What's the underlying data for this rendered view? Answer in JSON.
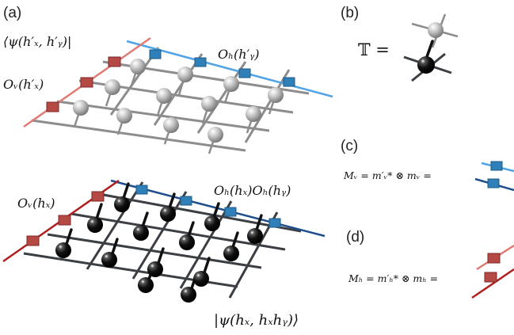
{
  "panels": {
    "a": "(a)",
    "b": "(b)",
    "c": "(c)",
    "d": "(d)"
  },
  "labels": {
    "bra_state": "⟨ψ(h′ₓ, h′ᵧ)|",
    "ov_prime": "Oᵥ(h′ₓ)",
    "oh_prime": "Oₕ(h′ᵧ)",
    "ov": "Oᵥ(hₓ)",
    "oh_pair": "Oₕ(hₓ)Oₕ(hᵧ)",
    "ket_state": "|ψ(hₓ, hₓhᵧ)⟩",
    "transfer_symbol": "𝕋 =",
    "mv_eq": "Mᵥ = m′ᵥ* ⊗ mᵥ =",
    "mh_eq": "Mₕ = m′ₕ* ⊗ mₕ ="
  },
  "colors": {
    "gray_bond": "#8d8d8d",
    "dark_bond": "#3b3f44",
    "light_blue_line": "#4fa3e6",
    "dark_blue_line": "#1f4e8c",
    "red_line": "#d9534f",
    "dark_red_line": "#b01e1e",
    "blue_cube": "#2f7fb8",
    "red_cube": "#b54a45",
    "gray_sphere": "#bdbdbd",
    "black_sphere": "#0a0a0a"
  }
}
